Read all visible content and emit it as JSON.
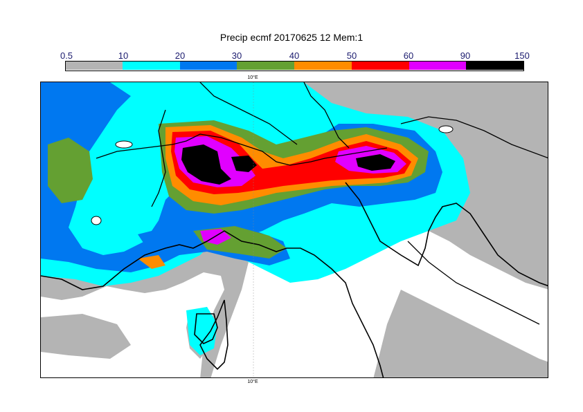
{
  "title": "Precip ecmf 20170625 12 Mem:1",
  "legend": {
    "labels": [
      "0.5",
      "10",
      "20",
      "30",
      "40",
      "50",
      "60",
      "90",
      "150"
    ],
    "colors": [
      "#b4b4b4",
      "#00ffff",
      "#0078f0",
      "#64a032",
      "#ff8c00",
      "#ff0000",
      "#e100ff",
      "#000000"
    ]
  },
  "map": {
    "top_lon_label": "10°E",
    "bottom_lon_label": "10°E",
    "land_color": "#b4b4b4",
    "sea_color": "#ffffff"
  }
}
